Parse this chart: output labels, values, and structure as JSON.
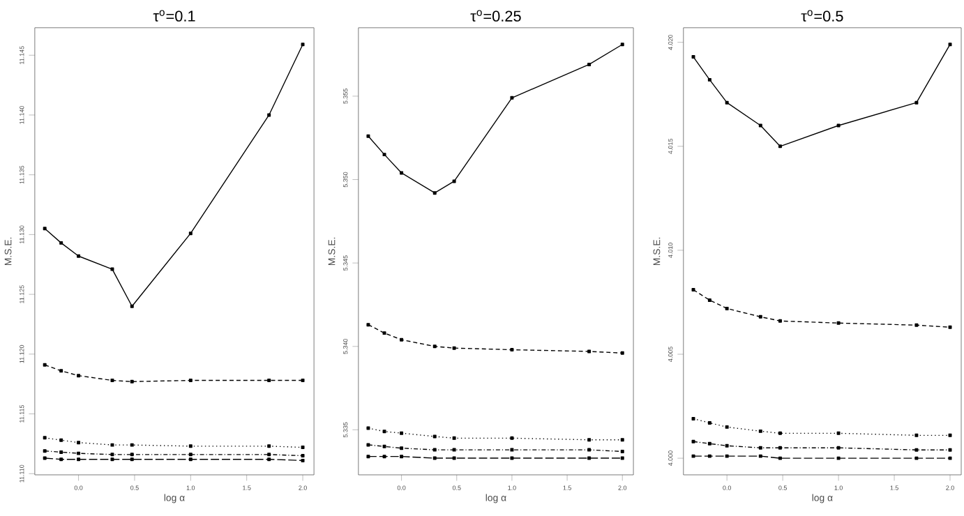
{
  "chart_data": [
    {
      "type": "line",
      "title": "τ$^{o}$=0.1",
      "xlabel": "log α",
      "ylabel": "M.S.E.",
      "marker": "square",
      "x": [
        -0.301,
        -0.155,
        0,
        0.301,
        0.477,
        1,
        1.699,
        2
      ],
      "xlim": [
        -0.39,
        2.1
      ],
      "xticks": [
        {
          "value": 0,
          "label": "0.0"
        },
        {
          "value": 0.5,
          "label": "0.5"
        },
        {
          "value": 1,
          "label": "1.0"
        },
        {
          "value": 1.5,
          "label": "1.5"
        },
        {
          "value": 2,
          "label": "2.0"
        }
      ],
      "ylim": [
        11.1099,
        11.1473
      ],
      "yticks": [
        {
          "value": 11.11,
          "label": "11.110"
        },
        11.115,
        {
          "value": 11.12,
          "label": "11.120"
        },
        11.125,
        {
          "value": 11.13,
          "label": "11.130"
        },
        11.135,
        {
          "value": 11.14,
          "label": "11.140"
        },
        11.145
      ],
      "series": [
        {
          "color": "#000000",
          "line_style": "solid",
          "values": [
            11.1305,
            11.1293,
            11.1282,
            11.1271,
            11.124,
            11.1301,
            11.14,
            11.1459
          ]
        },
        {
          "color": "#000000",
          "line_style": "dashed",
          "values": [
            11.1191,
            11.1186,
            11.1182,
            11.1178,
            11.1177,
            11.1178,
            11.1178,
            11.1178
          ]
        },
        {
          "color": "#000000",
          "line_style": "dotted",
          "values": [
            11.113,
            11.1128,
            11.1126,
            11.1124,
            11.1124,
            11.1123,
            11.1123,
            11.1122
          ]
        },
        {
          "color": "#000000",
          "line_style": "dashdot",
          "values": [
            11.1119,
            11.1118,
            11.1117,
            11.1116,
            11.1116,
            11.1116,
            11.1116,
            11.1115
          ]
        },
        {
          "color": "#000000",
          "line_style": "longdash",
          "values": [
            11.1113,
            11.1112,
            11.1112,
            11.1112,
            11.1112,
            11.1112,
            11.1112,
            11.1111
          ]
        }
      ]
    },
    {
      "type": "line",
      "title": "τ$^{o}$=0.25",
      "xlabel": "log α",
      "ylabel": "M.S.E.",
      "marker": "square",
      "x": [
        -0.301,
        -0.155,
        0,
        0.301,
        0.477,
        1,
        1.699,
        2
      ],
      "xlim": [
        -0.39,
        2.1
      ],
      "xticks": [
        {
          "value": 0,
          "label": "0.0"
        },
        {
          "value": 0.5,
          "label": "0.5"
        },
        {
          "value": 1,
          "label": "1.0"
        },
        {
          "value": 1.5,
          "label": "1.5"
        },
        {
          "value": 2,
          "label": "2.0"
        }
      ],
      "ylim": [
        5.3323,
        5.3591
      ],
      "yticks": [
        5.335,
        {
          "value": 5.34,
          "label": "5.340"
        },
        5.345,
        {
          "value": 5.35,
          "label": "5.350"
        },
        5.355
      ],
      "series": [
        {
          "color": "#000000",
          "line_style": "solid",
          "values": [
            5.3526,
            5.3515,
            5.3504,
            5.3492,
            5.3499,
            5.3549,
            5.3569,
            5.3581
          ]
        },
        {
          "color": "#000000",
          "line_style": "dashed",
          "values": [
            5.3413,
            5.3408,
            5.3404,
            5.34,
            5.3399,
            5.3398,
            5.3397,
            5.3396
          ]
        },
        {
          "color": "#000000",
          "line_style": "dotted",
          "values": [
            5.3351,
            5.3349,
            5.3348,
            5.3346,
            5.3345,
            5.3345,
            5.3344,
            5.3344
          ]
        },
        {
          "color": "#000000",
          "line_style": "dashdot",
          "values": [
            5.3341,
            5.334,
            5.3339,
            5.3338,
            5.3338,
            5.3338,
            5.3338,
            5.3337
          ]
        },
        {
          "color": "#000000",
          "line_style": "longdash",
          "values": [
            5.3334,
            5.3334,
            5.3334,
            5.3333,
            5.3333,
            5.3333,
            5.3333,
            5.3333
          ]
        }
      ]
    },
    {
      "type": "line",
      "title": "τ$^{o}$=0.5",
      "xlabel": "log α",
      "ylabel": "M.S.E.",
      "marker": "square",
      "x": [
        -0.301,
        -0.155,
        0,
        0.301,
        0.477,
        1,
        1.699,
        2
      ],
      "xlim": [
        -0.39,
        2.1
      ],
      "xticks": [
        {
          "value": 0,
          "label": "0.0"
        },
        {
          "value": 0.5,
          "label": "0.5"
        },
        {
          "value": 1,
          "label": "1.0"
        },
        {
          "value": 1.5,
          "label": "1.5"
        },
        {
          "value": 2,
          "label": "2.0"
        }
      ],
      "ylim": [
        3.9992,
        4.0207
      ],
      "yticks": [
        {
          "value": 4.0,
          "label": "4.000"
        },
        4.005,
        {
          "value": 4.01,
          "label": "4.010"
        },
        4.015,
        {
          "value": 4.02,
          "label": "4.020"
        }
      ],
      "series": [
        {
          "color": "#000000",
          "line_style": "solid",
          "values": [
            4.0193,
            4.0182,
            4.0171,
            4.016,
            4.015,
            4.016,
            4.0171,
            4.0199
          ]
        },
        {
          "color": "#000000",
          "line_style": "dashed",
          "values": [
            4.0081,
            4.0076,
            4.0072,
            4.0068,
            4.0066,
            4.0065,
            4.0064,
            4.0063
          ]
        },
        {
          "color": "#000000",
          "line_style": "dotted",
          "values": [
            4.0019,
            4.0017,
            4.0015,
            4.0013,
            4.0012,
            4.0012,
            4.0011,
            4.0011
          ]
        },
        {
          "color": "#000000",
          "line_style": "dashdot",
          "values": [
            4.0008,
            4.0007,
            4.0006,
            4.0005,
            4.0005,
            4.0005,
            4.0004,
            4.0004
          ]
        },
        {
          "color": "#000000",
          "line_style": "longdash",
          "values": [
            4.0001,
            4.0001,
            4.0001,
            4.0001,
            4.0,
            4.0,
            4.0,
            4.0
          ]
        }
      ]
    }
  ]
}
